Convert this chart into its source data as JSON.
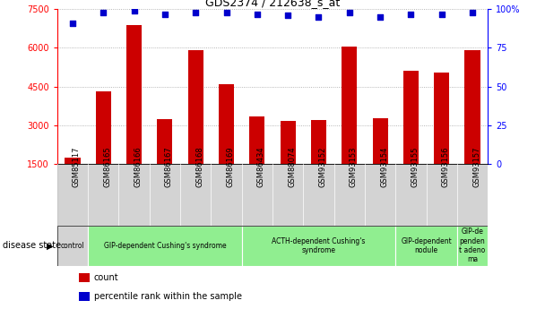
{
  "title": "GDS2374 / 212638_s_at",
  "samples": [
    "GSM85117",
    "GSM86165",
    "GSM86166",
    "GSM86167",
    "GSM86168",
    "GSM86169",
    "GSM86434",
    "GSM88074",
    "GSM93152",
    "GSM93153",
    "GSM93154",
    "GSM93155",
    "GSM93156",
    "GSM93157"
  ],
  "counts": [
    1750,
    4300,
    6900,
    3250,
    5900,
    4600,
    3350,
    3150,
    3200,
    6050,
    3280,
    5100,
    5050,
    5900
  ],
  "percentiles": [
    91,
    98,
    99,
    97,
    98,
    98,
    97,
    96,
    95,
    98,
    95,
    97,
    97,
    98
  ],
  "ylim_left": [
    1500,
    7500
  ],
  "ylim_right": [
    0,
    100
  ],
  "yticks_left": [
    1500,
    3000,
    4500,
    6000,
    7500
  ],
  "yticks_right": [
    0,
    25,
    50,
    75,
    100
  ],
  "disease_groups": [
    {
      "label": "control",
      "start": 0,
      "end": 1,
      "color": "#d3d3d3"
    },
    {
      "label": "GIP-dependent Cushing's syndrome",
      "start": 1,
      "end": 6,
      "color": "#90ee90"
    },
    {
      "label": "ACTH-dependent Cushing's\nsyndrome",
      "start": 6,
      "end": 11,
      "color": "#90ee90"
    },
    {
      "label": "GIP-dependent\nnodule",
      "start": 11,
      "end": 13,
      "color": "#90ee90"
    },
    {
      "label": "GIP-de\npenden\nt adeno\nma",
      "start": 13,
      "end": 14,
      "color": "#90ee90"
    }
  ],
  "bar_color": "#cc0000",
  "dot_color": "#0000cc",
  "grid_color": "#a0a0a0",
  "sample_bg": "#d3d3d3",
  "legend_items": [
    {
      "label": "count",
      "color": "#cc0000"
    },
    {
      "label": "percentile rank within the sample",
      "color": "#0000cc"
    }
  ],
  "fig_width": 6.08,
  "fig_height": 3.45,
  "dpi": 100
}
